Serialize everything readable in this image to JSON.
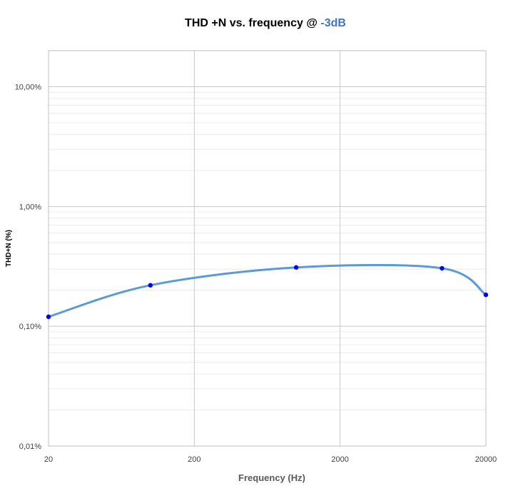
{
  "chart_data": {
    "type": "line",
    "title_main": "THD +N vs. frequency @ ",
    "title_accent": "-3dB",
    "xlabel": "Frequency (Hz)",
    "ylabel": "THD+N  (%)",
    "x_scale": "log",
    "y_scale": "log",
    "xlim": [
      20,
      20000
    ],
    "ylim": [
      0.01,
      20
    ],
    "x_ticks": [
      {
        "value": 20,
        "label": "20"
      },
      {
        "value": 200,
        "label": "200"
      },
      {
        "value": 2000,
        "label": "2000"
      },
      {
        "value": 20000,
        "label": "20000"
      }
    ],
    "y_ticks": [
      {
        "value": 0.01,
        "label": "0,01%"
      },
      {
        "value": 0.1,
        "label": "0,10%"
      },
      {
        "value": 1,
        "label": "1,00%"
      },
      {
        "value": 10,
        "label": "10,00%"
      }
    ],
    "grid": true,
    "smooth": true,
    "line_color": "#5b9bd5",
    "marker_color": "#0000ff",
    "accent_color": "#4472c4",
    "series": [
      {
        "x": [
          20,
          100,
          1000,
          10000,
          20000
        ],
        "y": [
          0.12,
          0.22,
          0.31,
          0.305,
          0.183
        ]
      }
    ]
  }
}
